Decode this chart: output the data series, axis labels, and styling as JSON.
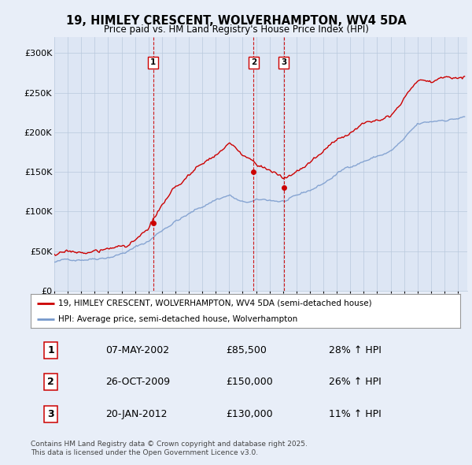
{
  "title": "19, HIMLEY CRESCENT, WOLVERHAMPTON, WV4 5DA",
  "subtitle": "Price paid vs. HM Land Registry's House Price Index (HPI)",
  "ylim": [
    0,
    320000
  ],
  "yticks": [
    0,
    50000,
    100000,
    150000,
    200000,
    250000,
    300000
  ],
  "ytick_labels": [
    "£0",
    "£50K",
    "£100K",
    "£150K",
    "£200K",
    "£250K",
    "£300K"
  ],
  "xlim_start": 1995.0,
  "xlim_end": 2025.7,
  "background_color": "#e8eef8",
  "plot_bg_color": "#dde6f4",
  "grid_color": "#b8c8dc",
  "sale_dates": [
    2002.35,
    2009.82,
    2012.05
  ],
  "sale_prices": [
    85500,
    150000,
    130000
  ],
  "sale_labels": [
    "1",
    "2",
    "3"
  ],
  "legend_label_red": "19, HIMLEY CRESCENT, WOLVERHAMPTON, WV4 5DA (semi-detached house)",
  "legend_label_blue": "HPI: Average price, semi-detached house, Wolverhampton",
  "table_entries": [
    [
      "1",
      "07-MAY-2002",
      "£85,500",
      "28% ↑ HPI"
    ],
    [
      "2",
      "26-OCT-2009",
      "£150,000",
      "26% ↑ HPI"
    ],
    [
      "3",
      "20-JAN-2012",
      "£130,000",
      "11% ↑ HPI"
    ]
  ],
  "footnote": "Contains HM Land Registry data © Crown copyright and database right 2025.\nThis data is licensed under the Open Government Licence v3.0.",
  "red_color": "#cc0000",
  "blue_color": "#7799cc",
  "dashed_color": "#cc0000",
  "hpi_keypoints": [
    [
      1995.0,
      36000
    ],
    [
      1996.0,
      38000
    ],
    [
      1997.0,
      41000
    ],
    [
      1998.0,
      44000
    ],
    [
      1999.0,
      48000
    ],
    [
      2000.0,
      53000
    ],
    [
      2001.0,
      60000
    ],
    [
      2002.0,
      68000
    ],
    [
      2003.0,
      82000
    ],
    [
      2004.0,
      95000
    ],
    [
      2005.0,
      103000
    ],
    [
      2006.0,
      112000
    ],
    [
      2007.0,
      122000
    ],
    [
      2008.0,
      128000
    ],
    [
      2009.0,
      117000
    ],
    [
      2010.0,
      118000
    ],
    [
      2011.0,
      118000
    ],
    [
      2012.0,
      117000
    ],
    [
      2013.0,
      120000
    ],
    [
      2014.0,
      127000
    ],
    [
      2015.0,
      136000
    ],
    [
      2016.0,
      148000
    ],
    [
      2017.0,
      158000
    ],
    [
      2018.0,
      166000
    ],
    [
      2019.0,
      172000
    ],
    [
      2020.0,
      178000
    ],
    [
      2021.0,
      192000
    ],
    [
      2022.0,
      208000
    ],
    [
      2023.0,
      210000
    ],
    [
      2024.0,
      214000
    ],
    [
      2025.5,
      218000
    ]
  ],
  "red_keypoints": [
    [
      1995.0,
      46000
    ],
    [
      1996.0,
      46500
    ],
    [
      1997.0,
      47000
    ],
    [
      1998.0,
      48000
    ],
    [
      1999.0,
      50000
    ],
    [
      2000.0,
      54000
    ],
    [
      2001.0,
      62000
    ],
    [
      2002.0,
      72000
    ],
    [
      2002.35,
      85500
    ],
    [
      2003.0,
      100000
    ],
    [
      2004.0,
      118000
    ],
    [
      2005.0,
      135000
    ],
    [
      2006.0,
      148000
    ],
    [
      2007.0,
      162000
    ],
    [
      2008.0,
      175000
    ],
    [
      2009.0,
      158000
    ],
    [
      2009.82,
      150000
    ],
    [
      2010.0,
      148000
    ],
    [
      2011.0,
      143000
    ],
    [
      2012.05,
      130000
    ],
    [
      2012.5,
      132000
    ],
    [
      2013.0,
      138000
    ],
    [
      2014.0,
      148000
    ],
    [
      2015.0,
      162000
    ],
    [
      2016.0,
      175000
    ],
    [
      2017.0,
      188000
    ],
    [
      2018.0,
      198000
    ],
    [
      2019.0,
      210000
    ],
    [
      2020.0,
      220000
    ],
    [
      2021.0,
      240000
    ],
    [
      2022.0,
      265000
    ],
    [
      2023.0,
      262000
    ],
    [
      2024.0,
      268000
    ],
    [
      2025.5,
      272000
    ]
  ]
}
